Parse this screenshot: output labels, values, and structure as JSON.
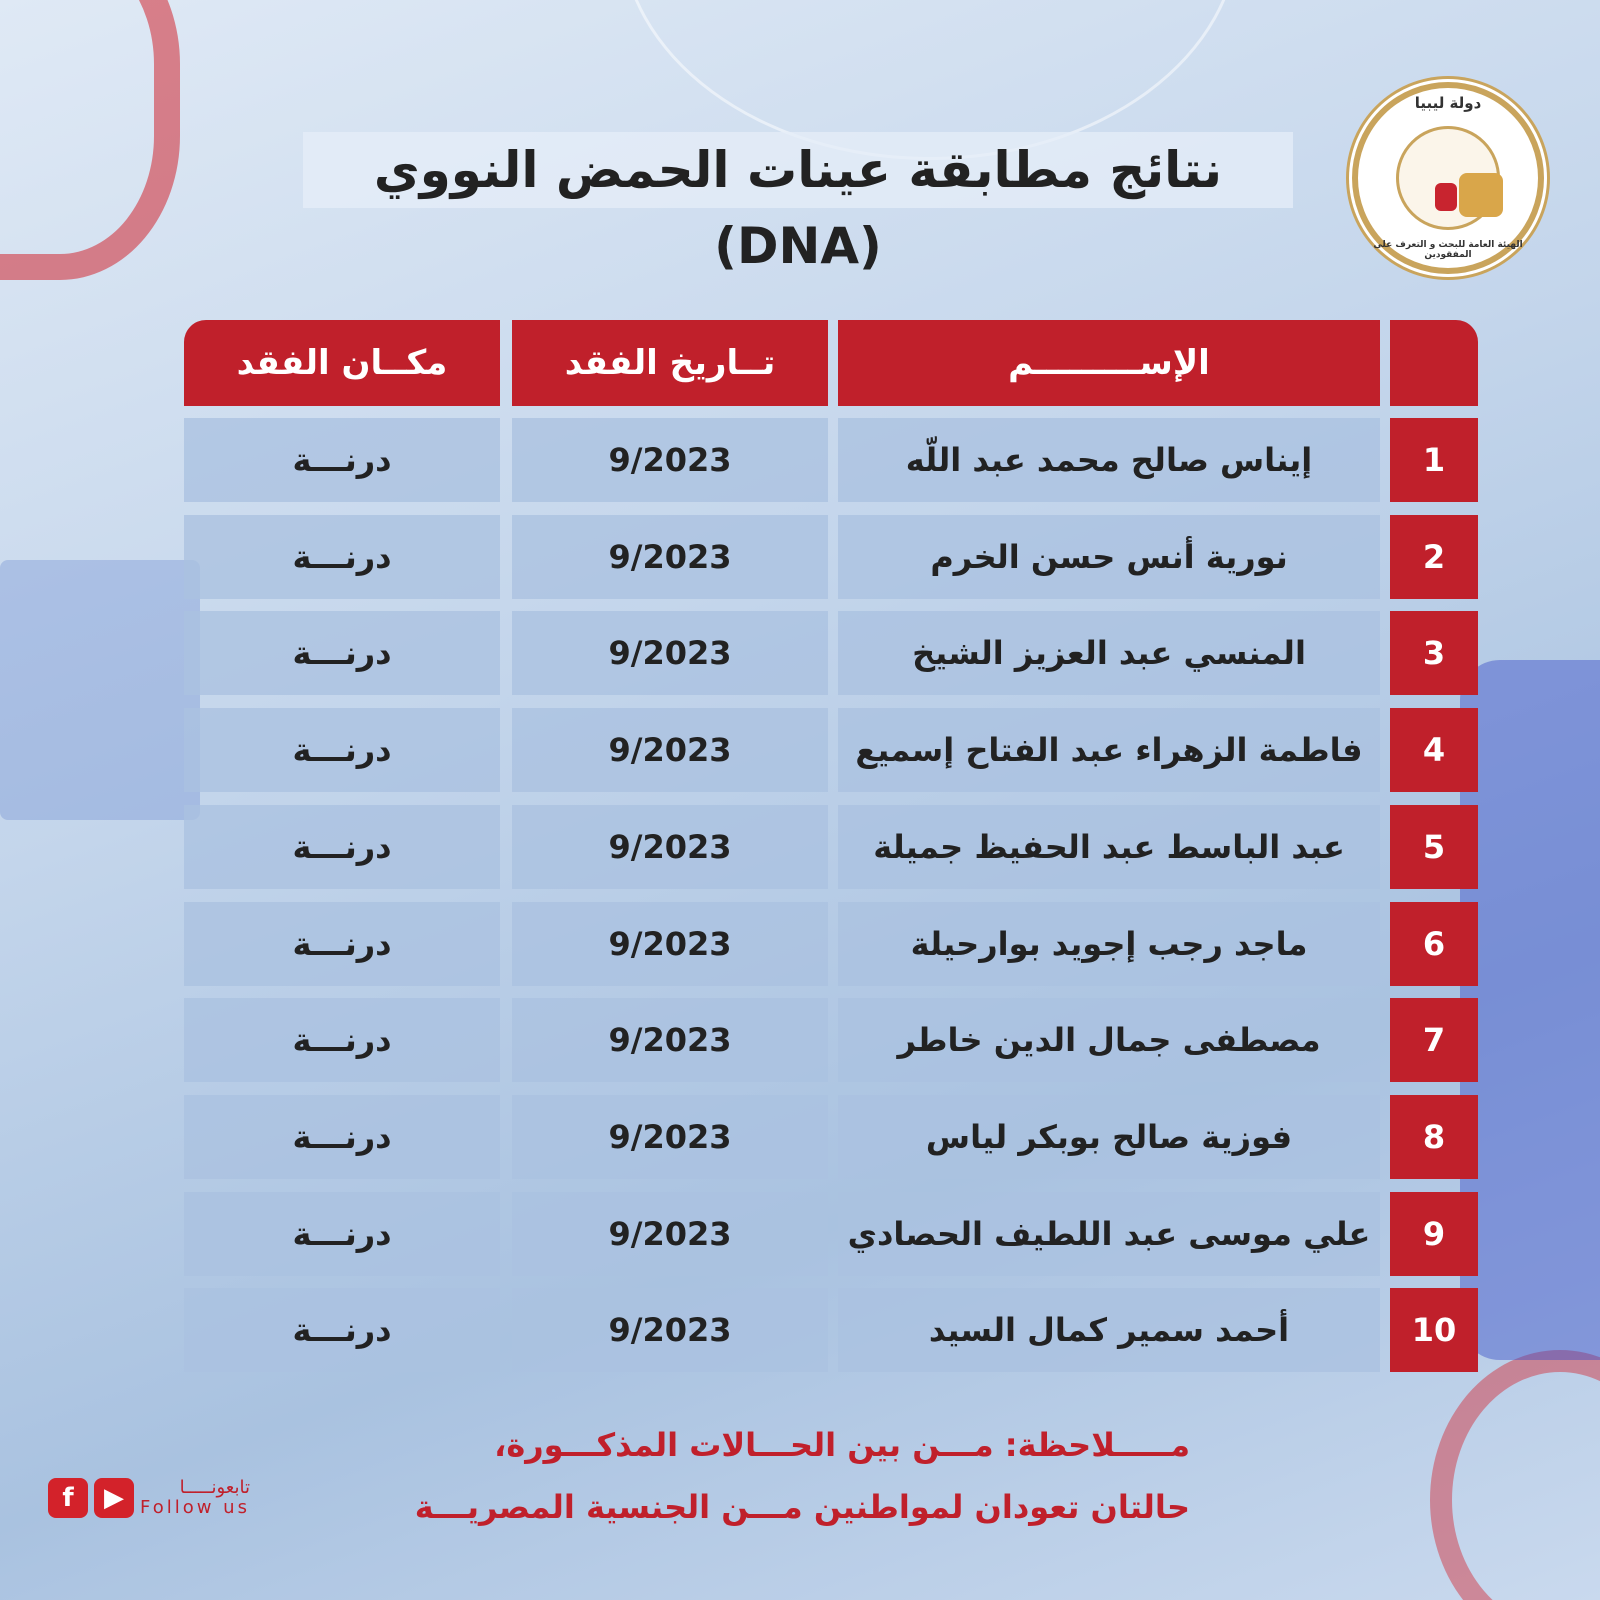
{
  "title": "نتائج مطابقة عينات الحمض  النووي (DNA)",
  "logo": {
    "top_text": "دولة ليبيا",
    "bottom_text": "الهيئة العامة للبحث و التعرف على المفقودين"
  },
  "table": {
    "headers": {
      "number": "",
      "name": "الإســـــــــم",
      "date": "تــاريخ  الفقد",
      "place": "مكــان الفقد"
    },
    "rows": [
      {
        "number": "1",
        "name": "إيناس صالح محمد عبد اللّه",
        "date": "9/2023",
        "place": "درنـــة"
      },
      {
        "number": "2",
        "name": "نورية أنس حسن الخرم",
        "date": "9/2023",
        "place": "درنـــة"
      },
      {
        "number": "3",
        "name": "المنسي عبد العزيز  الشيخ",
        "date": "9/2023",
        "place": "درنـــة"
      },
      {
        "number": "4",
        "name": "فاطمة الزهراء عبد الفتاح إسميع",
        "date": "9/2023",
        "place": "درنـــة"
      },
      {
        "number": "5",
        "name": "عبد الباسط عبد الحفيظ جميلة",
        "date": "9/2023",
        "place": "درنـــة"
      },
      {
        "number": "6",
        "name": "ماجد رجب إجويد بوارحيلة",
        "date": "9/2023",
        "place": "درنـــة"
      },
      {
        "number": "7",
        "name": "مصطفى جمال الدين   خاطر",
        "date": "9/2023",
        "place": "درنـــة"
      },
      {
        "number": "8",
        "name": "فوزية صالح بوبكر لياس",
        "date": "9/2023",
        "place": "درنـــة"
      },
      {
        "number": "9",
        "name": "علي موسى عبد اللطيف الحصادي",
        "date": "9/2023",
        "place": "درنـــة"
      },
      {
        "number": "10",
        "name": "أحمد سمير كمال السيد",
        "date": "9/2023",
        "place": "درنـــة"
      }
    ]
  },
  "note": {
    "line1": "مـــــلاحظة: مـــن بين الحـــالات المذكـــورة،",
    "line2": "حالتان تعودان لمواطنين مـــن الجنسية المصريـــة"
  },
  "footer": {
    "follow_ar": "تابعونـــــا",
    "follow_en": "Follow us",
    "icons": [
      "facebook-icon",
      "youtube-icon"
    ]
  },
  "colors": {
    "accent": "#c0202b",
    "gold": "#c9a45c"
  }
}
